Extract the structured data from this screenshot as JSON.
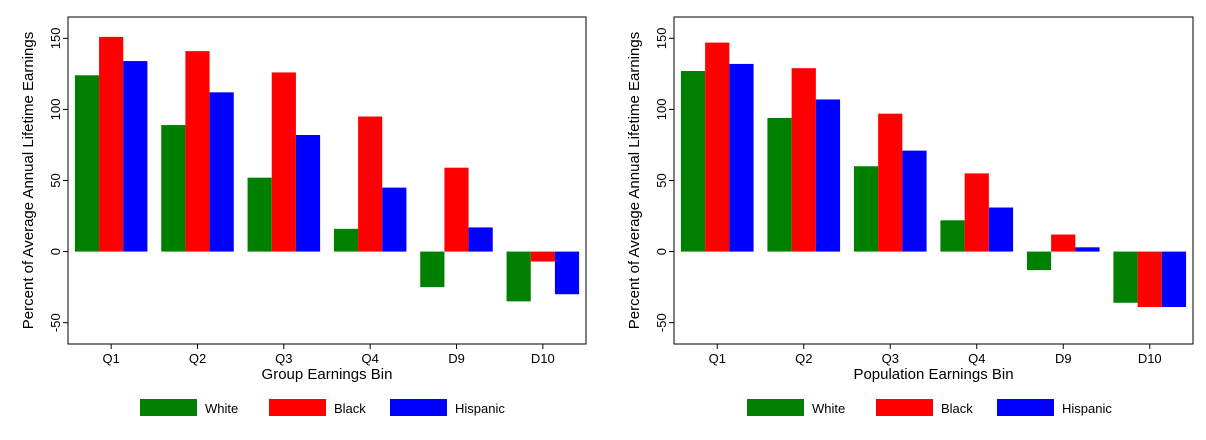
{
  "chart_data": [
    {
      "type": "bar",
      "xlabel": "Group Earnings Bin",
      "ylabel": "Percent of Average Annual Lifetime Earnings",
      "categories": [
        "Q1",
        "Q2",
        "Q3",
        "Q4",
        "D9",
        "D10"
      ],
      "ylim": [
        -65,
        165
      ],
      "yticks": [
        -50,
        0,
        50,
        100,
        150
      ],
      "grid": false,
      "legend": "bottom",
      "series": [
        {
          "name": "White",
          "color": "#008000",
          "values": [
            124,
            89,
            52,
            16,
            -25,
            -35
          ]
        },
        {
          "name": "Black",
          "color": "#ff0000",
          "values": [
            151,
            141,
            126,
            95,
            59,
            -7
          ]
        },
        {
          "name": "Hispanic",
          "color": "#0000ff",
          "values": [
            134,
            112,
            82,
            45,
            17,
            -30
          ]
        }
      ]
    },
    {
      "type": "bar",
      "xlabel": "Population Earnings Bin",
      "ylabel": "Percent of Average Annual Lifetime Earnings",
      "categories": [
        "Q1",
        "Q2",
        "Q3",
        "Q4",
        "D9",
        "D10"
      ],
      "ylim": [
        -65,
        165
      ],
      "yticks": [
        -50,
        0,
        50,
        100,
        150
      ],
      "grid": false,
      "legend": "bottom",
      "series": [
        {
          "name": "White",
          "color": "#008000",
          "values": [
            127,
            94,
            60,
            22,
            -13,
            -36
          ]
        },
        {
          "name": "Black",
          "color": "#ff0000",
          "values": [
            147,
            129,
            97,
            55,
            12,
            -39
          ]
        },
        {
          "name": "Hispanic",
          "color": "#0000ff",
          "values": [
            132,
            107,
            71,
            31,
            3,
            -39
          ]
        }
      ]
    }
  ]
}
